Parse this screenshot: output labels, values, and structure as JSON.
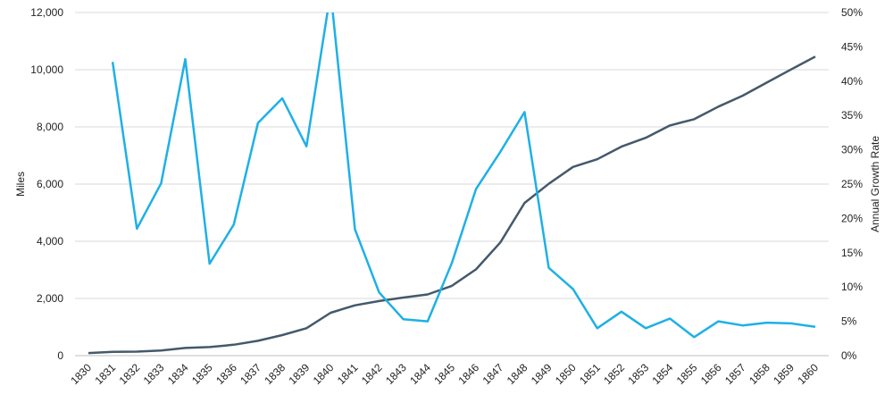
{
  "chart_data": {
    "type": "line",
    "title": "",
    "xlabel": "",
    "ylabel": "Miles",
    "y2label": "Annual Growth Rate",
    "x": [
      "1830",
      "1831",
      "1832",
      "1833",
      "1834",
      "1835",
      "1836",
      "1837",
      "1838",
      "1839",
      "1840",
      "1841",
      "1842",
      "1843",
      "1844",
      "1845",
      "1846",
      "1847",
      "1848",
      "1849",
      "1850",
      "1851",
      "1852",
      "1853",
      "1854",
      "1855",
      "1856",
      "1857",
      "1858",
      "1859",
      "1860"
    ],
    "ylim": [
      0,
      12000
    ],
    "y_ticks": [
      "0",
      "2,000",
      "4,000",
      "6,000",
      "8,000",
      "10,000",
      "12,000"
    ],
    "y2lim": [
      0,
      0.5
    ],
    "y2_ticks": [
      "0%",
      "5%",
      "10%",
      "15%",
      "20%",
      "25%",
      "30%",
      "35%",
      "40%",
      "45%",
      "50%"
    ],
    "grid": "horizontal",
    "legend": "none",
    "series": [
      {
        "axis": "left",
        "color": "#44596b",
        "values": [
          90,
          130,
          140,
          180,
          270,
          300,
          380,
          520,
          720,
          960,
          1500,
          1760,
          1910,
          2030,
          2140,
          2440,
          3020,
          3960,
          5340,
          6010,
          6600,
          6870,
          7310,
          7620,
          8050,
          8270,
          8710,
          9090,
          9550,
          10010,
          10460
        ]
      },
      {
        "axis": "right",
        "color": "#1eb0e6",
        "values": [
          null,
          0.428,
          0.185,
          0.251,
          0.432,
          0.134,
          0.191,
          0.339,
          0.375,
          0.305,
          0.53,
          0.184,
          0.092,
          0.053,
          0.05,
          0.135,
          0.243,
          0.297,
          0.355,
          0.128,
          0.097,
          0.04,
          0.064,
          0.04,
          0.054,
          0.027,
          0.05,
          0.044,
          0.048,
          0.047,
          0.042
        ]
      }
    ]
  }
}
